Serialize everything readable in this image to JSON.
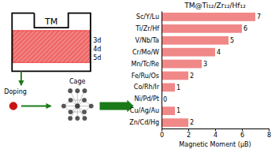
{
  "chart_data": {
    "type": "bar",
    "orientation": "horizontal",
    "title": "TM@Ti₁₂/Zr₁₂/Hf₁₂",
    "categories": [
      "Sc/Y/Lu",
      "Ti/Zr/Hf",
      "V/Nb/Ta",
      "Cr/Mo/W",
      "Mn/Tc/Re",
      "Fe/Ru/Os",
      "Co/Rh/Ir",
      "Ni/Pd/Pt",
      "Cu/Ag/Au",
      "Zn/Cd/Hg"
    ],
    "values": [
      7,
      6,
      5,
      4,
      3,
      2,
      1,
      0,
      1,
      2
    ],
    "color": "#f08888",
    "xlabel": "Magnetic Moment (μB)",
    "xlim": [
      0,
      8
    ],
    "xticks": [
      0,
      2,
      4,
      6,
      8
    ],
    "data_labels": true,
    "annotations": [
      "TM",
      "3d",
      "4d",
      "5d",
      "Doping",
      "Cage"
    ]
  }
}
